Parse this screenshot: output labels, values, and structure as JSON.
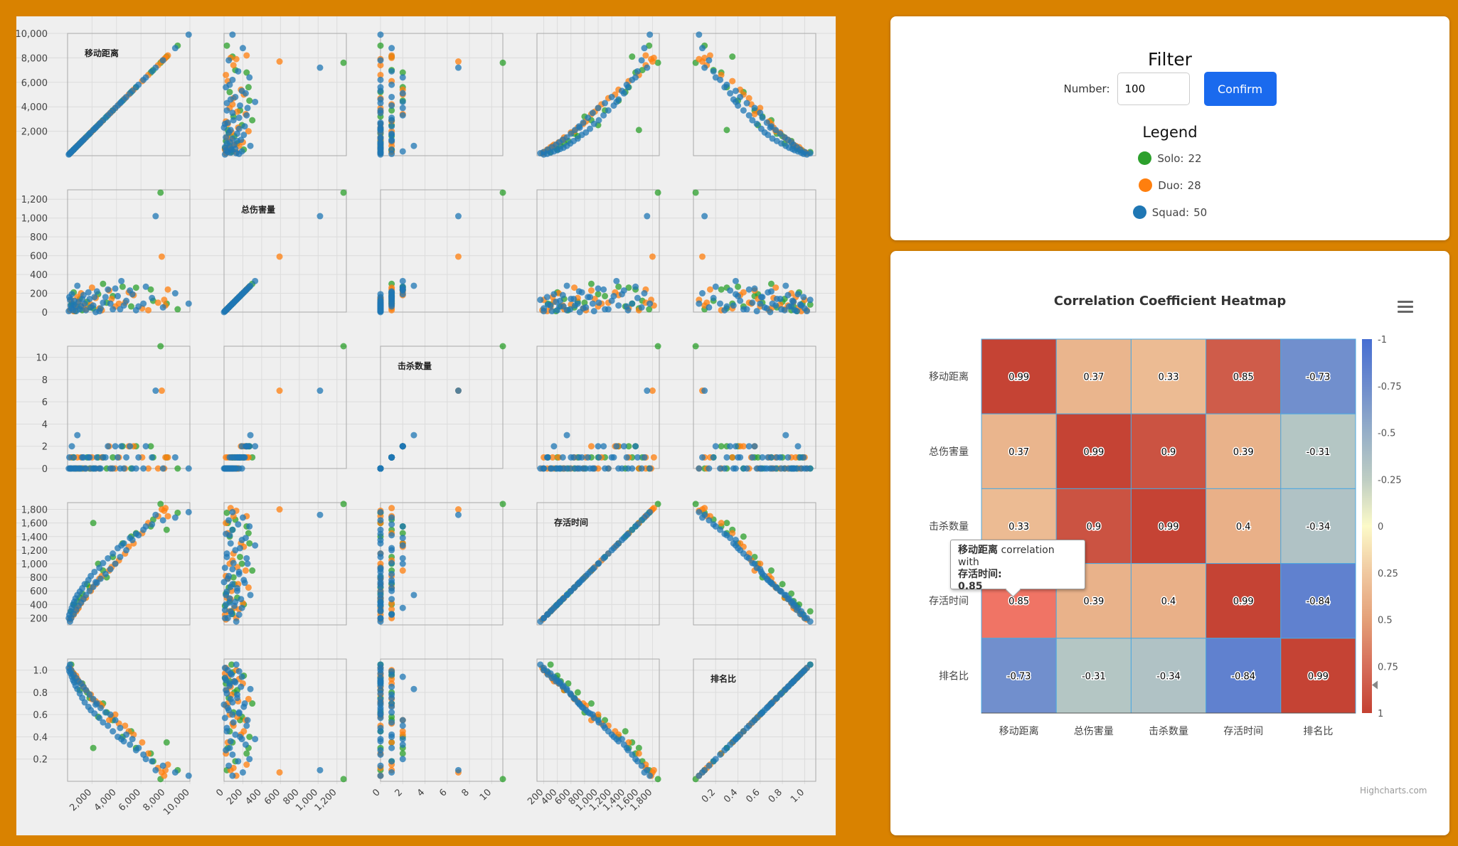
{
  "colors": {
    "solo": "#2ca02c",
    "duo": "#ff7f0e",
    "squad": "#1f77b4",
    "background": "#D98200"
  },
  "filter": {
    "title": "Filter",
    "number_label": "Number:",
    "number_value": "100",
    "confirm_label": "Confirm",
    "legend_title": "Legend",
    "legend": [
      {
        "label": "Solo:",
        "count": "22",
        "color": "#2ca02c"
      },
      {
        "label": "Duo:",
        "count": "28",
        "color": "#ff7f0e"
      },
      {
        "label": "Squad:",
        "count": "50",
        "color": "#1f77b4"
      }
    ]
  },
  "heatmap": {
    "title": "Correlation Coefficient Heatmap",
    "credit": "Highcharts.com",
    "tooltip": {
      "row_label": "移动距离",
      "mid_text": " correlation with",
      "col_label": "存活时间:",
      "value": "0.85"
    }
  },
  "chart_data": [
    {
      "type": "scatter",
      "title": "Scatter plot matrix",
      "variables": [
        "移动距离",
        "总伤害量",
        "击杀数量",
        "存活时间",
        "排名比"
      ],
      "ranges": [
        [
          0,
          10000
        ],
        [
          0,
          1300
        ],
        [
          0,
          11
        ],
        [
          100,
          1900
        ],
        [
          0,
          1.1
        ]
      ],
      "ticks": [
        {
          "values": [
            2000,
            4000,
            6000,
            8000,
            10000
          ],
          "labels": [
            "2,000",
            "4,000",
            "6,000",
            "8,000",
            "10,000"
          ]
        },
        {
          "values": [
            0,
            200,
            400,
            600,
            800,
            1000,
            1200
          ],
          "labels": [
            "0",
            "200",
            "400",
            "600",
            "800",
            "1,000",
            "1,200"
          ]
        },
        {
          "values": [
            0,
            2,
            4,
            6,
            8,
            10
          ],
          "labels": [
            "0",
            "2",
            "4",
            "6",
            "8",
            "10"
          ]
        },
        {
          "values": [
            200,
            400,
            600,
            800,
            1000,
            1200,
            1400,
            1600,
            1800
          ],
          "labels": [
            "200",
            "400",
            "600",
            "800",
            "1,000",
            "1,200",
            "1,400",
            "1,600",
            "1,800"
          ]
        },
        {
          "values": [
            0.2,
            0.4,
            0.6,
            0.8,
            1.0
          ],
          "labels": [
            "0.2",
            "0.4",
            "0.6",
            "0.8",
            "1.0"
          ]
        }
      ],
      "series": [
        {
          "name": "Solo",
          "color": "#2ca02c",
          "points": [
            [
              7600,
              1270,
              11,
              1880,
              0.02
            ],
            [
              8100,
              90,
              1,
              1500,
              0.35
            ],
            [
              6800,
              240,
              2,
              1550,
              0.25
            ],
            [
              5200,
              60,
              0,
              1400,
              0.45
            ],
            [
              3700,
              170,
              1,
              1100,
              0.55
            ],
            [
              2900,
              300,
              1,
              900,
              0.7
            ],
            [
              2100,
              40,
              0,
              1600,
              0.3
            ],
            [
              1600,
              110,
              1,
              700,
              0.8
            ],
            [
              1200,
              20,
              0,
              560,
              0.88
            ],
            [
              800,
              60,
              0,
              450,
              0.9
            ],
            [
              500,
              210,
              1,
              400,
              0.95
            ],
            [
              300,
              80,
              0,
              300,
              1.05
            ],
            [
              9000,
              30,
              0,
              1750,
              0.1
            ],
            [
              4500,
              270,
              2,
              1300,
              0.4
            ],
            [
              3200,
              100,
              0,
              800,
              0.62
            ],
            [
              2500,
              190,
              1,
              1000,
              0.58
            ],
            [
              1800,
              50,
              0,
              650,
              0.75
            ],
            [
              1000,
              140,
              0,
              500,
              0.82
            ],
            [
              600,
              10,
              0,
              380,
              0.93
            ],
            [
              400,
              90,
              1,
              260,
              0.98
            ],
            [
              7000,
              120,
              1,
              1650,
              0.18
            ],
            [
              5600,
              260,
              2,
              1450,
              0.3
            ]
          ]
        },
        {
          "name": "Duo",
          "color": "#ff7f0e",
          "points": [
            [
              7700,
              590,
              7,
              1800,
              0.08
            ],
            [
              8200,
              240,
              1,
              1700,
              0.15
            ],
            [
              7900,
              130,
              0,
              1780,
              0.05
            ],
            [
              6100,
              40,
              1,
              1450,
              0.35
            ],
            [
              5400,
              180,
              2,
              1300,
              0.42
            ],
            [
              4700,
              100,
              0,
              1150,
              0.5
            ],
            [
              3900,
              60,
              0,
              1000,
              0.6
            ],
            [
              3400,
              230,
              2,
              900,
              0.55
            ],
            [
              2800,
              20,
              1,
              820,
              0.68
            ],
            [
              2300,
              150,
              0,
              700,
              0.72
            ],
            [
              1900,
              80,
              0,
              600,
              0.78
            ],
            [
              1500,
              30,
              0,
              500,
              0.82
            ],
            [
              1100,
              200,
              1,
              420,
              0.88
            ],
            [
              900,
              110,
              0,
              350,
              0.9
            ],
            [
              700,
              50,
              0,
              300,
              0.95
            ],
            [
              500,
              10,
              0,
              250,
              0.97
            ],
            [
              300,
              130,
              1,
              200,
              1.0
            ],
            [
              8000,
              70,
              1,
              1820,
              0.1
            ],
            [
              6600,
              20,
              0,
              1600,
              0.25
            ],
            [
              5000,
              210,
              2,
              1250,
              0.45
            ],
            [
              4200,
              90,
              1,
              1050,
              0.52
            ],
            [
              3600,
              140,
              0,
              950,
              0.58
            ],
            [
              2600,
              40,
              0,
              780,
              0.7
            ],
            [
              2000,
              260,
              1,
              650,
              0.74
            ],
            [
              1300,
              70,
              0,
              480,
              0.85
            ],
            [
              800,
              160,
              1,
              330,
              0.92
            ],
            [
              200,
              20,
              0,
              180,
              1.02
            ],
            [
              7400,
              100,
              0,
              1700,
              0.12
            ]
          ]
        },
        {
          "name": "Squad",
          "color": "#1f77b4",
          "points": [
            [
              9900,
              90,
              0,
              1760,
              0.05
            ],
            [
              7200,
              1020,
              7,
              1720,
              0.1
            ],
            [
              6400,
              270,
              2,
              1550,
              0.2
            ],
            [
              5800,
              60,
              1,
              1420,
              0.3
            ],
            [
              5300,
              190,
              0,
              1350,
              0.38
            ],
            [
              4800,
              120,
              1,
              1200,
              0.42
            ],
            [
              4300,
              30,
              0,
              1100,
              0.48
            ],
            [
              3900,
              250,
              2,
              1000,
              0.55
            ],
            [
              3500,
              90,
              0,
              920,
              0.6
            ],
            [
              3100,
              160,
              1,
              850,
              0.62
            ],
            [
              2700,
              40,
              0,
              780,
              0.66
            ],
            [
              2400,
              220,
              1,
              720,
              0.7
            ],
            [
              2100,
              70,
              0,
              660,
              0.74
            ],
            [
              1800,
              140,
              1,
              600,
              0.78
            ],
            [
              1500,
              20,
              0,
              540,
              0.82
            ],
            [
              1300,
              180,
              1,
              480,
              0.85
            ],
            [
              1100,
              60,
              0,
              430,
              0.88
            ],
            [
              900,
              110,
              0,
              380,
              0.9
            ],
            [
              700,
              10,
              0,
              320,
              0.93
            ],
            [
              500,
              80,
              1,
              260,
              0.96
            ],
            [
              300,
              40,
              0,
              200,
              1.0
            ],
            [
              200,
              130,
              0,
              150,
              1.05
            ],
            [
              8800,
              200,
              1,
              1680,
              0.08
            ],
            [
              7800,
              50,
              0,
              1640,
              0.14
            ],
            [
              6900,
              150,
              1,
              1580,
              0.18
            ],
            [
              6200,
              90,
              0,
              1500,
              0.24
            ],
            [
              5600,
              20,
              0,
              1440,
              0.28
            ],
            [
              5100,
              230,
              2,
              1380,
              0.33
            ],
            [
              4600,
              70,
              0,
              1300,
              0.36
            ],
            [
              4100,
              170,
              1,
              1230,
              0.4
            ],
            [
              3700,
              30,
              0,
              1150,
              0.45
            ],
            [
              3300,
              240,
              2,
              1080,
              0.5
            ],
            [
              2900,
              100,
              1,
              1010,
              0.53
            ],
            [
              2600,
              10,
              0,
              940,
              0.57
            ],
            [
              2200,
              160,
              0,
              880,
              0.61
            ],
            [
              1900,
              50,
              0,
              820,
              0.64
            ],
            [
              1700,
              210,
              1,
              760,
              0.67
            ],
            [
              1400,
              90,
              0,
              700,
              0.71
            ],
            [
              1200,
              140,
              1,
              640,
              0.75
            ],
            [
              1000,
              30,
              0,
              590,
              0.79
            ],
            [
              800,
              280,
              3,
              540,
              0.83
            ],
            [
              650,
              60,
              0,
              490,
              0.86
            ],
            [
              550,
              120,
              0,
              440,
              0.89
            ],
            [
              450,
              20,
              0,
              400,
              0.91
            ],
            [
              350,
              190,
              2,
              350,
              0.94
            ],
            [
              250,
              70,
              0,
              300,
              0.97
            ],
            [
              150,
              160,
              1,
              250,
              0.99
            ],
            [
              100,
              10,
              0,
              200,
              1.02
            ],
            [
              4400,
              330,
              2,
              1270,
              0.38
            ],
            [
              2300,
              0,
              0,
              730,
              0.69
            ]
          ]
        }
      ]
    },
    {
      "type": "heatmap",
      "title": "Correlation Coefficient Heatmap",
      "x_categories": [
        "移动距离",
        "总伤害量",
        "击杀数量",
        "存活时间",
        "排名比"
      ],
      "y_categories": [
        "移动距离",
        "总伤害量",
        "击杀数量",
        "存活时间",
        "排名比"
      ],
      "values": [
        [
          0.99,
          0.37,
          0.33,
          0.85,
          -0.73
        ],
        [
          0.37,
          0.99,
          0.9,
          0.39,
          -0.31
        ],
        [
          0.33,
          0.9,
          0.99,
          0.4,
          -0.34
        ],
        [
          0.85,
          0.39,
          0.4,
          0.99,
          -0.84
        ],
        [
          -0.73,
          -0.31,
          -0.34,
          -0.84,
          0.99
        ]
      ],
      "color_axis": {
        "min": -1,
        "max": 1,
        "reversed": true,
        "ticks": [
          "-1",
          "-0.75",
          "-0.5",
          "-0.25",
          "0",
          "0.25",
          "0.5",
          "0.75",
          "1"
        ]
      },
      "highlighted": {
        "row": 3,
        "col": 0
      }
    }
  ]
}
